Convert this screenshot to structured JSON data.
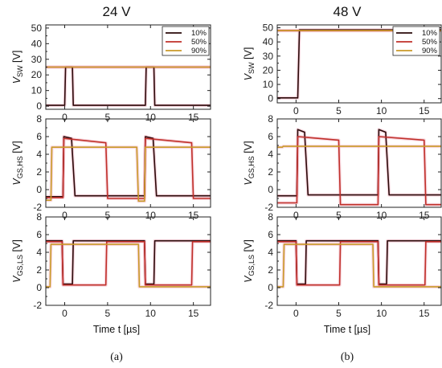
{
  "columns": [
    {
      "title": "24 V",
      "caption": "(a)"
    },
    {
      "title": "48 V",
      "caption": "(b)"
    }
  ],
  "xlabel": "Time t [µs]",
  "colors": {
    "10%": "#2a0a0a",
    "50%": "#c0302a",
    "90%": "#c99a28",
    "shade": "#f3b6c4"
  },
  "chart_data": [
    {
      "type": "line",
      "column": "24 V",
      "row": "VSW",
      "ylabel_main": "V",
      "ylabel_sub": "SW",
      "ylabel_unit": " [V]",
      "xlim": [
        -2.2,
        17
      ],
      "ylim": [
        -2,
        52
      ],
      "xticks": [
        0,
        5,
        10,
        15
      ],
      "yticks": [
        0,
        10,
        20,
        30,
        40,
        50
      ],
      "legend": "top-right",
      "series": [
        {
          "name": "10%",
          "x": [
            -2.2,
            0.0,
            0.1,
            0.9,
            1.0,
            9.4,
            9.5,
            10.4,
            10.5,
            17
          ],
          "y": [
            0.5,
            0.5,
            25,
            25,
            0.5,
            0.5,
            25,
            25,
            0.5,
            0.5
          ]
        },
        {
          "name": "50%",
          "x": [
            -2.2,
            -0.6,
            -0.5,
            4.9,
            5.0,
            9.4,
            9.5,
            14.9,
            15.0,
            17
          ],
          "y": [
            25,
            25,
            25,
            25,
            25,
            25,
            25,
            25,
            25,
            25
          ]
        },
        {
          "name": "90%",
          "x": [
            -2.2,
            -0.6,
            -0.5,
            8.5,
            8.6,
            9.4,
            9.5,
            17
          ],
          "y": [
            25,
            25,
            25,
            25,
            25,
            25,
            25,
            25
          ]
        }
      ]
    },
    {
      "type": "line",
      "column": "48 V",
      "row": "VSW",
      "ylabel_main": "V",
      "ylabel_sub": "SW",
      "ylabel_unit": " [V]",
      "xlim": [
        -2.2,
        17
      ],
      "ylim": [
        -3,
        52
      ],
      "xticks": [
        0,
        5,
        10,
        15
      ],
      "yticks": [
        0,
        10,
        20,
        30,
        40,
        50
      ],
      "legend": "top-right",
      "series": [
        {
          "name": "10%",
          "x": [
            -2.2,
            0.2,
            0.4,
            9.6,
            9.8,
            17
          ],
          "y": [
            0.5,
            0.5,
            48.5,
            48.5,
            48.5,
            48.5
          ]
        },
        {
          "name": "50%",
          "x": [
            -2.2,
            0.2,
            0.4,
            5.0,
            5.1,
            9.6,
            9.8,
            15.0,
            15.1,
            17
          ],
          "y": [
            48,
            48,
            48,
            48,
            48,
            48,
            48,
            48,
            48,
            48
          ]
        },
        {
          "name": "90%",
          "x": [
            -2.2,
            0.2,
            0.4,
            9.0,
            9.1,
            9.6,
            9.8,
            17
          ],
          "y": [
            48,
            48,
            48,
            48,
            48,
            48,
            48,
            48
          ]
        }
      ]
    },
    {
      "type": "line",
      "column": "24 V",
      "row": "VGS,HS",
      "ylabel_main": "V",
      "ylabel_sub": "GS,HS",
      "ylabel_unit": " [V]",
      "xlim": [
        -2.2,
        17
      ],
      "ylim": [
        -2,
        8
      ],
      "xticks": [
        0,
        5,
        10,
        15
      ],
      "yticks": [
        -2,
        0,
        2,
        4,
        6,
        8
      ],
      "series": [
        {
          "name": "10%",
          "x": [
            -2.2,
            -0.2,
            -0.1,
            0.8,
            1.2,
            9.3,
            9.4,
            10.3,
            10.7,
            17
          ],
          "y": [
            -0.8,
            -0.8,
            6.0,
            5.8,
            -0.7,
            -0.7,
            6.0,
            5.8,
            -0.7,
            -0.7
          ]
        },
        {
          "name": "50%",
          "x": [
            -2.2,
            -0.2,
            -0.1,
            4.8,
            5.0,
            9.3,
            9.4,
            14.8,
            15.0,
            17
          ],
          "y": [
            -0.9,
            -0.9,
            5.8,
            5.3,
            -1.0,
            -1.0,
            5.8,
            5.3,
            -1.0,
            -1.0
          ]
        },
        {
          "name": "90%",
          "x": [
            -2.2,
            -1.6,
            -1.5,
            8.4,
            8.6,
            9.3,
            9.4,
            17
          ],
          "y": [
            -1.2,
            -1.2,
            4.8,
            4.8,
            -1.3,
            -1.3,
            4.8,
            4.8
          ]
        }
      ]
    },
    {
      "type": "line",
      "column": "48 V",
      "row": "VGS,HS",
      "ylabel_main": "V",
      "ylabel_sub": "GS,HS",
      "ylabel_unit": " [V]",
      "xlim": [
        -2.2,
        17
      ],
      "ylim": [
        -2,
        8
      ],
      "xticks": [
        0,
        5,
        10,
        15
      ],
      "yticks": [
        -2,
        0,
        2,
        4,
        6,
        8
      ],
      "series": [
        {
          "name": "10%",
          "x": [
            -2.2,
            0.1,
            0.2,
            1.0,
            1.4,
            9.6,
            9.7,
            10.5,
            10.9,
            17
          ],
          "y": [
            -0.7,
            -0.7,
            6.8,
            6.5,
            -0.6,
            -0.6,
            6.8,
            6.5,
            -0.6,
            -0.6
          ]
        },
        {
          "name": "50%",
          "x": [
            -2.2,
            0.1,
            0.2,
            5.0,
            5.2,
            9.6,
            9.7,
            15.0,
            15.2,
            17
          ],
          "y": [
            -1.5,
            -1.5,
            6.0,
            5.6,
            -1.7,
            -1.7,
            6.0,
            5.6,
            -1.7,
            -1.7
          ]
        },
        {
          "name": "90%",
          "x": [
            -2.2,
            -1.6,
            -1.5,
            9.0,
            9.2,
            9.6,
            9.7,
            17
          ],
          "y": [
            4.8,
            4.8,
            4.9,
            4.9,
            4.9,
            4.9,
            4.9,
            4.9
          ]
        }
      ]
    },
    {
      "type": "line",
      "column": "24 V",
      "row": "VGS,LS",
      "ylabel_main": "V",
      "ylabel_sub": "GS,LS",
      "ylabel_unit": " [V]",
      "xlim": [
        -2.2,
        17
      ],
      "ylim": [
        -2,
        8
      ],
      "xticks": [
        0,
        5,
        10,
        15
      ],
      "yticks": [
        -2,
        0,
        2,
        4,
        6,
        8
      ],
      "series": [
        {
          "name": "10%",
          "x": [
            -2.2,
            -0.3,
            -0.2,
            0.9,
            1.0,
            9.3,
            9.4,
            10.4,
            10.5,
            17
          ],
          "y": [
            5.3,
            5.3,
            0.4,
            0.4,
            5.3,
            5.3,
            0.4,
            0.4,
            5.3,
            5.3
          ]
        },
        {
          "name": "50%",
          "x": [
            -2.2,
            -0.3,
            -0.2,
            4.8,
            4.9,
            9.3,
            9.4,
            14.8,
            14.9,
            17
          ],
          "y": [
            5.2,
            5.2,
            0.3,
            0.3,
            5.2,
            5.2,
            0.3,
            0.3,
            5.2,
            5.2
          ]
        },
        {
          "name": "90%",
          "x": [
            -2.2,
            -1.7,
            -1.6,
            8.6,
            8.7,
            17
          ],
          "y": [
            0.1,
            0.1,
            4.9,
            4.9,
            0.1,
            0.1
          ]
        }
      ]
    },
    {
      "type": "line",
      "column": "48 V",
      "row": "VGS,LS",
      "ylabel_main": "V",
      "ylabel_sub": "GS,LS",
      "ylabel_unit": " [V]",
      "xlim": [
        -2.2,
        17
      ],
      "ylim": [
        -2,
        8
      ],
      "xticks": [
        0,
        5,
        10,
        15
      ],
      "yticks": [
        -2,
        0,
        2,
        4,
        6,
        8
      ],
      "series": [
        {
          "name": "10%",
          "x": [
            -2.2,
            0.0,
            0.1,
            1.1,
            1.2,
            9.6,
            9.7,
            10.6,
            10.7,
            17
          ],
          "y": [
            5.3,
            5.3,
            0.4,
            0.4,
            5.3,
            5.3,
            0.4,
            0.4,
            5.3,
            5.3
          ]
        },
        {
          "name": "50%",
          "x": [
            -2.2,
            0.0,
            0.1,
            5.1,
            5.2,
            9.6,
            9.7,
            15.1,
            15.2,
            17
          ],
          "y": [
            5.2,
            5.2,
            0.3,
            0.3,
            5.2,
            5.2,
            0.3,
            0.3,
            5.2,
            5.2
          ]
        },
        {
          "name": "90%",
          "x": [
            -2.2,
            -1.5,
            -1.4,
            9.0,
            9.1,
            17
          ],
          "y": [
            0.1,
            0.1,
            4.9,
            4.9,
            0.1,
            0.1
          ]
        }
      ]
    }
  ]
}
